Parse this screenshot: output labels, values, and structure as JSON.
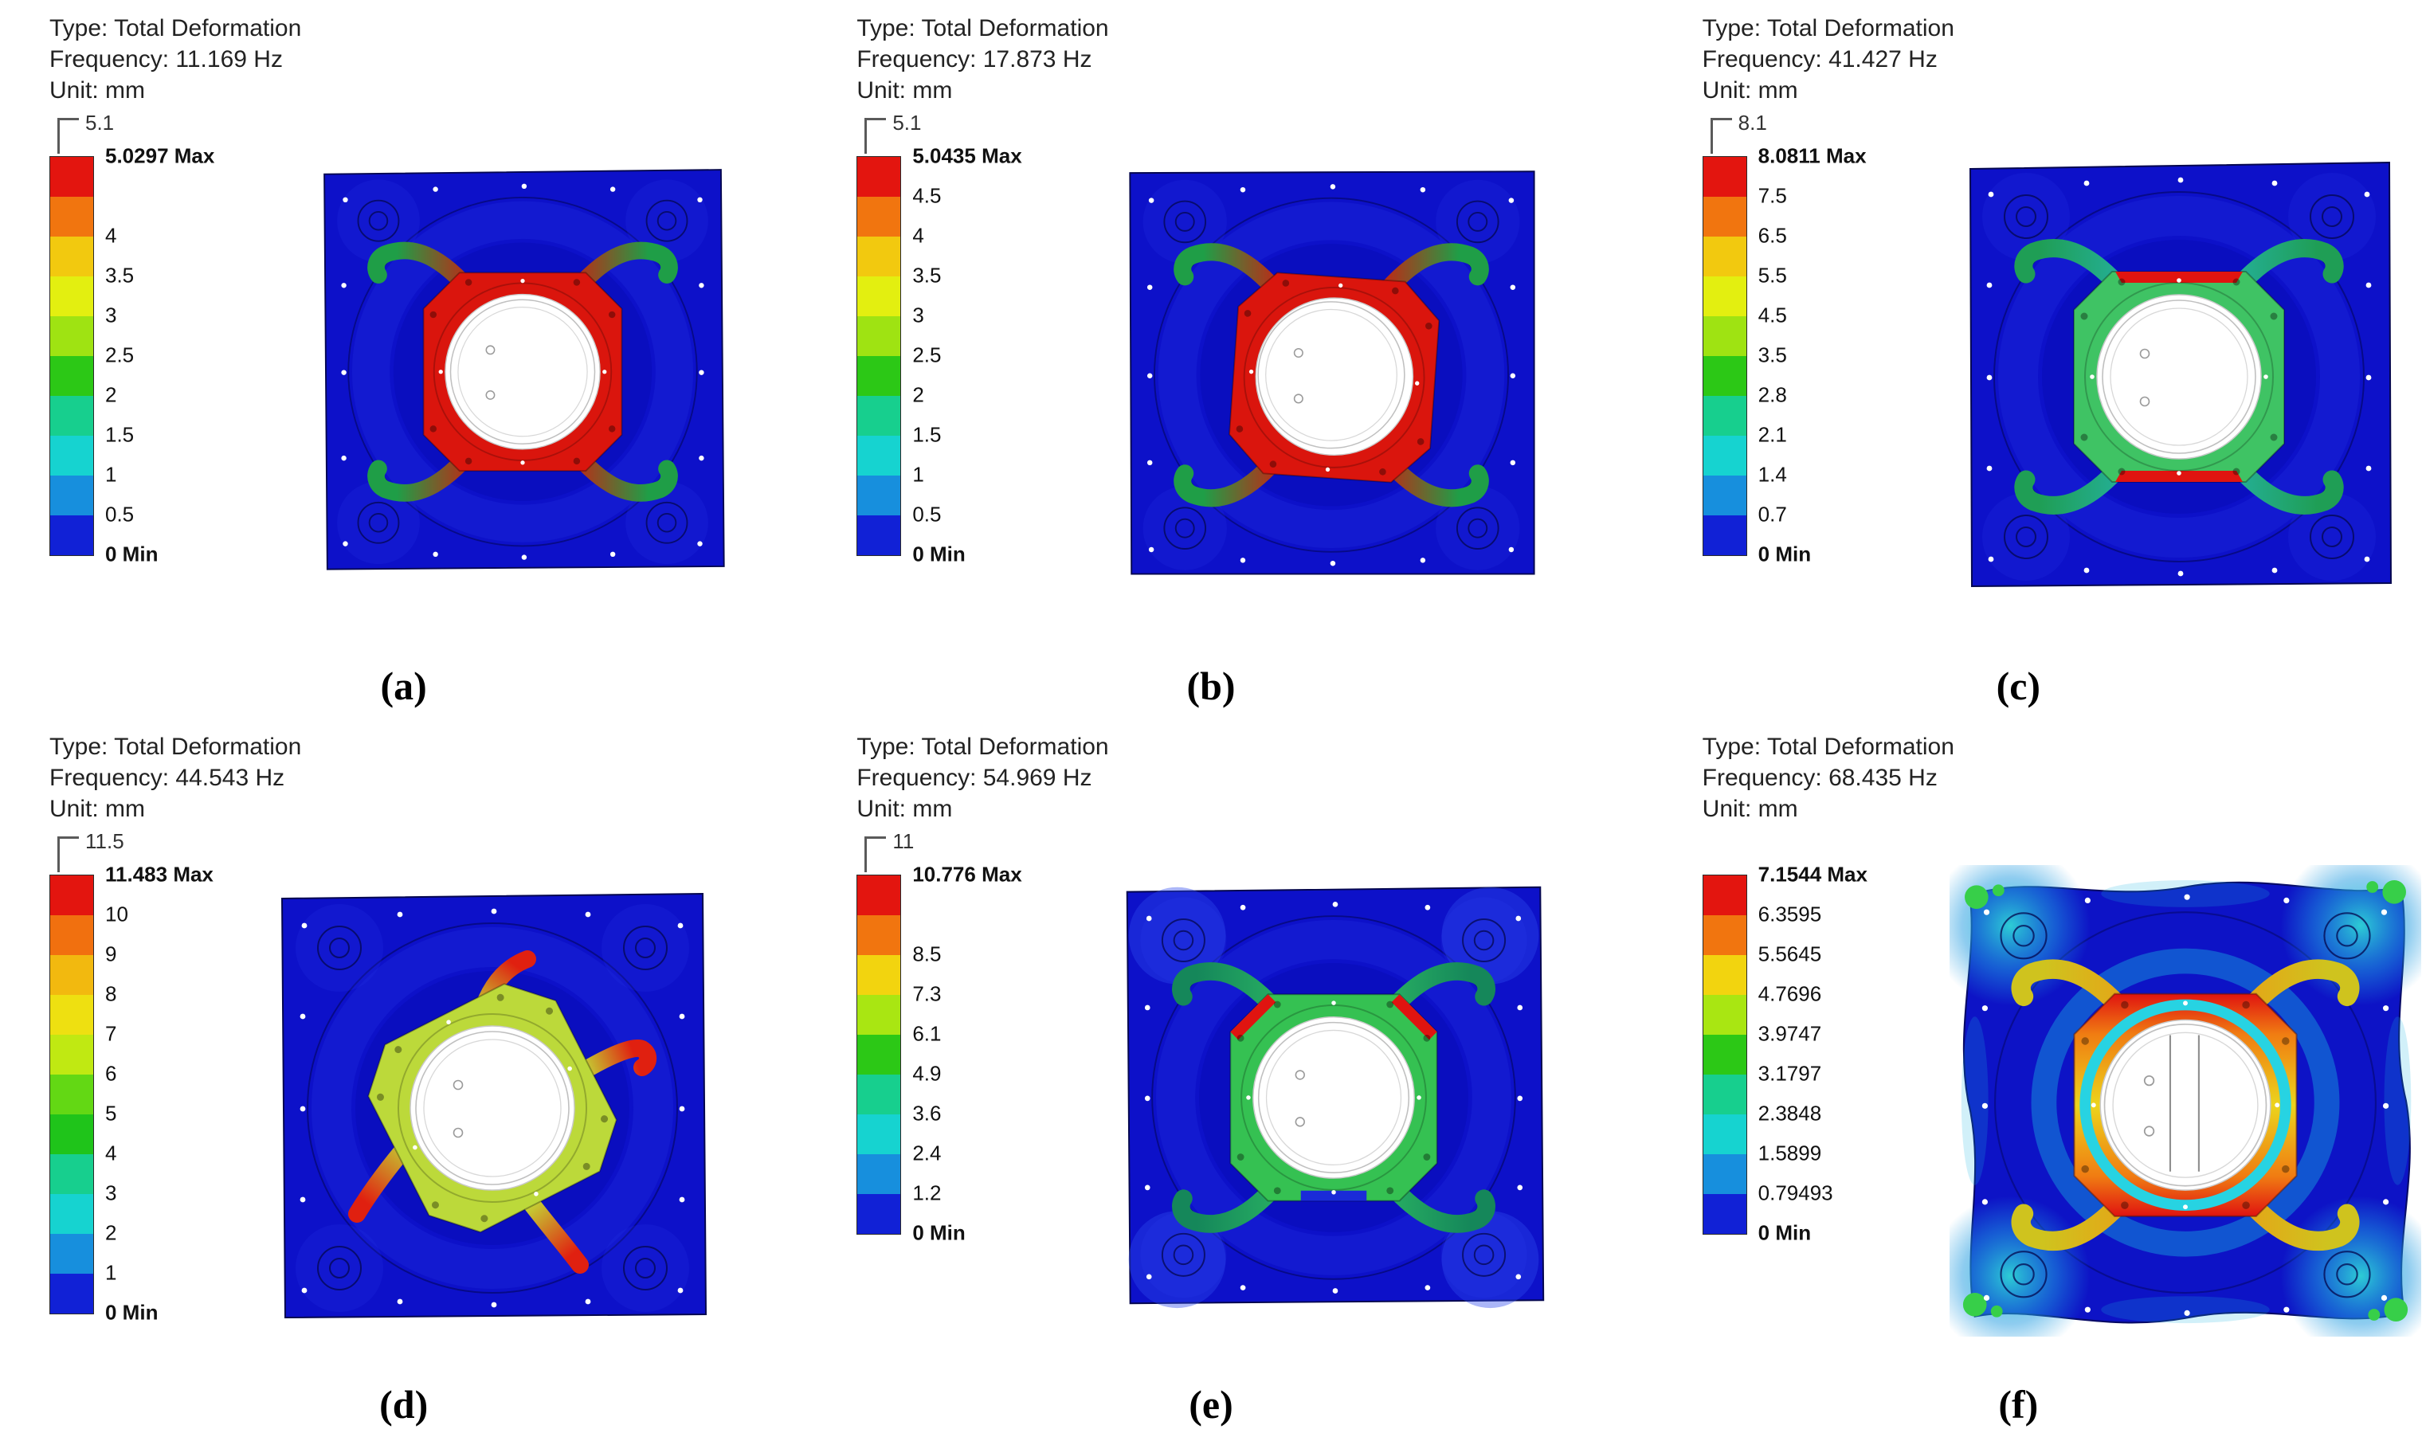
{
  "figure": {
    "background_color": "#ffffff",
    "panels": [
      {
        "id": "a",
        "caption": "(a)",
        "header": {
          "type": "Type: Total Deformation",
          "frequency": "Frequency: 11.169 Hz",
          "unit": "Unit: mm"
        },
        "legend": {
          "top_tick": "5.1",
          "labels": [
            "5.0297 Max",
            "",
            "4",
            "3.5",
            "3",
            "2.5",
            "2",
            "1.5",
            "1",
            "0.5",
            "0 Min"
          ],
          "band_colors": [
            "#e3150f",
            "#f1750f",
            "#f2c90f",
            "#e3ef10",
            "#9fe312",
            "#2cc816",
            "#17cf8e",
            "#16d3d0",
            "#178fdd",
            "#1121d6"
          ]
        },
        "plot": {
          "plate_color": "#0d11c9",
          "frame_color": "#da150d",
          "leg_root_color": "#da150d",
          "leg_tip_color": "#1f9e47",
          "hole_color": "#ffffff"
        }
      },
      {
        "id": "b",
        "caption": "(b)",
        "header": {
          "type": "Type: Total Deformation",
          "frequency": "Frequency: 17.873 Hz",
          "unit": "Unit: mm"
        },
        "legend": {
          "top_tick": "5.1",
          "labels": [
            "5.0435 Max",
            "4.5",
            "4",
            "3.5",
            "3",
            "2.5",
            "2",
            "1.5",
            "1",
            "0.5",
            "0 Min"
          ],
          "band_colors": [
            "#e3150f",
            "#f1750f",
            "#f2c90f",
            "#e3ef10",
            "#9fe312",
            "#2cc816",
            "#17cf8e",
            "#16d3d0",
            "#178fdd",
            "#1121d6"
          ]
        },
        "plot": {
          "plate_color": "#0d11c9",
          "frame_color": "#da150d",
          "leg_root_color": "#da150d",
          "leg_tip_color": "#1f9e47",
          "hole_color": "#ffffff"
        }
      },
      {
        "id": "c",
        "caption": "(c)",
        "header": {
          "type": "Type: Total Deformation",
          "frequency": "Frequency: 41.427 Hz",
          "unit": "Unit: mm"
        },
        "legend": {
          "top_tick": "8.1",
          "labels": [
            "8.0811 Max",
            "7.5",
            "6.5",
            "5.5",
            "4.5",
            "3.5",
            "2.8",
            "2.1",
            "1.4",
            "0.7",
            "0 Min"
          ],
          "band_colors": [
            "#e3150f",
            "#f1750f",
            "#f2c90f",
            "#e3ef10",
            "#9fe312",
            "#2cc816",
            "#17cf8e",
            "#16d3d0",
            "#178fdd",
            "#1121d6"
          ]
        },
        "plot": {
          "plate_color": "#0d11c9",
          "frame_color": "#3fc364",
          "leg_root_color": "#25b2a2",
          "leg_tip_color": "#1f9e55",
          "accent_color": "#e01410",
          "hole_color": "#ffffff"
        }
      },
      {
        "id": "d",
        "caption": "(d)",
        "header": {
          "type": "Type: Total Deformation",
          "frequency": "Frequency: 44.543 Hz",
          "unit": "Unit: mm"
        },
        "legend": {
          "top_tick": "11.5",
          "labels": [
            "11.483 Max",
            "10",
            "9",
            "8",
            "7",
            "6",
            "5",
            "4",
            "3",
            "2",
            "1",
            "0 Min"
          ],
          "band_colors": [
            "#e3150f",
            "#f1700f",
            "#f2b90f",
            "#eee011",
            "#c0e912",
            "#63d814",
            "#1fc41a",
            "#17cf8e",
            "#16d3d0",
            "#178fdd",
            "#1121d6"
          ]
        },
        "plot": {
          "plate_color": "#0d11c9",
          "frame_color": "#bcd93a",
          "leg_root_color": "#c3d435",
          "leg_tip_color": "#e02010",
          "hole_color": "#ffffff"
        }
      },
      {
        "id": "e",
        "caption": "(e)",
        "header": {
          "type": "Type: Total Deformation",
          "frequency": "Frequency: 54.969 Hz",
          "unit": "Unit: mm"
        },
        "legend": {
          "top_tick": "11",
          "labels": [
            "10.776 Max",
            "",
            "8.5",
            "7.3",
            "6.1",
            "4.9",
            "3.6",
            "2.4",
            "1.2",
            "0 Min"
          ],
          "band_colors": [
            "#e3150f",
            "#f1750f",
            "#f2d40f",
            "#a9e612",
            "#2cc816",
            "#17cf8e",
            "#16d3d0",
            "#178fdd",
            "#1121d6"
          ]
        },
        "plot": {
          "plate_color": "#0d11c9",
          "frame_color": "#35c152",
          "leg_root_color": "#2ab464",
          "leg_tip_color": "#15875a",
          "accent_color": "#e01410",
          "bottom_patch_color": "#1a2bd8",
          "hole_color": "#ffffff"
        }
      },
      {
        "id": "f",
        "caption": "(f)",
        "header": {
          "type": "Type: Total Deformation",
          "frequency": "Frequency: 68.435 Hz",
          "unit": "Unit: mm"
        },
        "legend": {
          "labels": [
            "7.1544 Max",
            "6.3595",
            "5.5645",
            "4.7696",
            "3.9747",
            "3.1797",
            "2.3848",
            "1.5899",
            "0.79493",
            "0 Min"
          ],
          "band_colors": [
            "#e3150f",
            "#f1750f",
            "#f2d40f",
            "#a9e612",
            "#2cc816",
            "#17cf8e",
            "#16d3d0",
            "#178fdd",
            "#1121d6"
          ]
        },
        "plot": {
          "plate_color": "#0d13c6",
          "frame_gradient": [
            "#e01410",
            "#f07c12",
            "#ecd41c",
            "#f07c12",
            "#e01410"
          ],
          "leg_root_color": "#e8a016",
          "leg_tip_color": "#cfc31e",
          "ring_color": "#27d3e2",
          "corner_glow_color": "#2fd6d6",
          "corner_dot_color": "#37cf49",
          "hole_color": "#ffffff"
        }
      }
    ]
  },
  "chart_data": {
    "type": "table",
    "title": "Type: Total Deformation (Unit: mm)",
    "columns": [
      "panel",
      "frequency_hz",
      "max_deformation_mm",
      "legend_scale_top"
    ],
    "rows": [
      [
        "a",
        11.169,
        5.0297,
        5.1
      ],
      [
        "b",
        17.873,
        5.0435,
        5.1
      ],
      [
        "c",
        41.427,
        8.0811,
        8.1
      ],
      [
        "d",
        44.543,
        11.483,
        11.5
      ],
      [
        "e",
        54.969,
        10.776,
        11
      ],
      [
        "f",
        68.435,
        7.1544,
        null
      ]
    ]
  }
}
